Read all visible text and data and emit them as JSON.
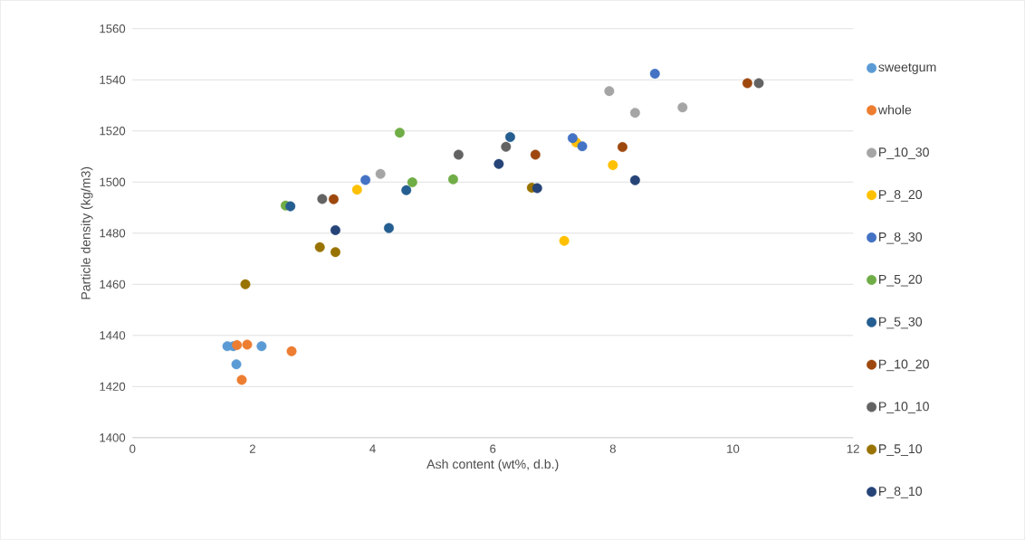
{
  "chart_data": {
    "type": "scatter",
    "xlabel": "Ash content (wt%, d.b.)",
    "ylabel": "Particle density (kg/m3)",
    "xlim": [
      0,
      12
    ],
    "xticks": [
      0,
      2,
      4,
      6,
      8,
      10,
      12
    ],
    "ylim": [
      1400,
      1560
    ],
    "yticks": [
      1400,
      1420,
      1440,
      1460,
      1480,
      1500,
      1520,
      1540,
      1560
    ],
    "grid": "y",
    "legend": "right",
    "marker": "circle",
    "series": [
      {
        "name": "sweetgum",
        "color": "#5b9bd5",
        "x": [
          1.58,
          1.68,
          2.15,
          1.73
        ],
        "values": [
          1435.8,
          1435.8,
          1435.8,
          1428.7
        ]
      },
      {
        "name": "whole",
        "color": "#ed7d31",
        "x": [
          1.74,
          1.91,
          2.65,
          1.82
        ],
        "values": [
          1436.2,
          1436.4,
          1433.8,
          1422.6
        ]
      },
      {
        "name": "P_10_30",
        "color": "#a5a5a5",
        "x": [
          4.13,
          7.94,
          8.37,
          9.16
        ],
        "values": [
          1503.2,
          1535.6,
          1527.1,
          1529.2
        ]
      },
      {
        "name": "P_8_20",
        "color": "#ffc000",
        "x": [
          3.74,
          7.19,
          7.39,
          8.0
        ],
        "values": [
          1497.0,
          1477.0,
          1515.5,
          1506.6
        ]
      },
      {
        "name": "P_8_30",
        "color": "#4472c4",
        "x": [
          3.88,
          7.33,
          7.49,
          8.7
        ],
        "values": [
          1500.8,
          1517.2,
          1514.0,
          1542.4
        ]
      },
      {
        "name": "P_5_20",
        "color": "#70ad47",
        "x": [
          2.55,
          4.45,
          4.66,
          5.34
        ],
        "values": [
          1490.8,
          1519.3,
          1499.9,
          1501.1
        ]
      },
      {
        "name": "P_5_30",
        "color": "#255e91",
        "x": [
          2.63,
          4.27,
          4.56,
          6.29
        ],
        "values": [
          1490.5,
          1482.0,
          1496.8,
          1517.6
        ]
      },
      {
        "name": "P_10_20",
        "color": "#9e480e",
        "x": [
          3.35,
          6.71,
          8.16,
          10.24
        ],
        "values": [
          1493.3,
          1510.7,
          1513.7,
          1538.7
        ]
      },
      {
        "name": "P_10_10",
        "color": "#636363",
        "x": [
          3.16,
          5.43,
          6.22,
          10.43
        ],
        "values": [
          1493.4,
          1510.7,
          1513.8,
          1538.7
        ]
      },
      {
        "name": "P_5_10",
        "color": "#997300",
        "x": [
          1.88,
          3.12,
          3.38,
          6.65
        ],
        "values": [
          1460.0,
          1474.5,
          1472.6,
          1497.8
        ]
      },
      {
        "name": "P_8_10",
        "color": "#264478",
        "x": [
          3.38,
          6.1,
          6.74,
          8.37
        ],
        "values": [
          1481.2,
          1507.1,
          1497.6,
          1500.7
        ]
      }
    ]
  }
}
